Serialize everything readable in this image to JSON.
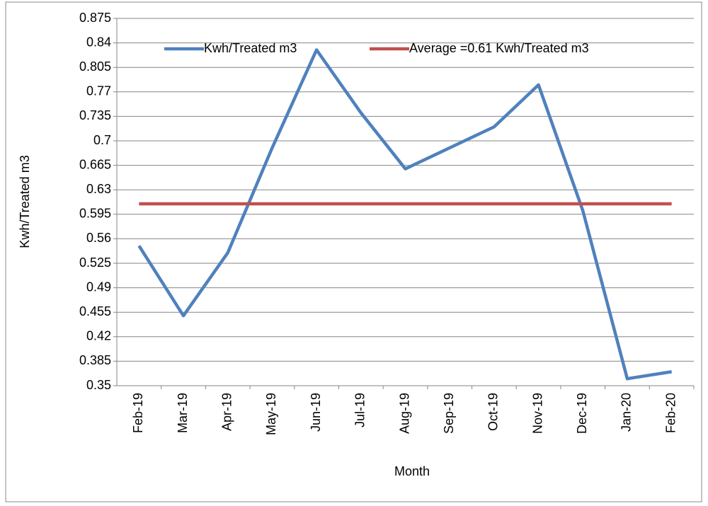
{
  "chart_data": {
    "type": "line",
    "x_label": "Month",
    "y_label": "Kwh/Treated m3",
    "categories": [
      "Feb-19",
      "Mar-19",
      "Apr-19",
      "May-19",
      "Jun-19",
      "Jul-19",
      "Aug-19",
      "Sep-19",
      "Oct-19",
      "Nov-19",
      "Dec-19",
      "Jan-20",
      "Feb-20"
    ],
    "series": [
      {
        "name": "Kwh/Treated m3",
        "color": "#4f81bd",
        "values": [
          0.55,
          0.45,
          0.54,
          0.69,
          0.83,
          0.74,
          0.66,
          0.69,
          0.72,
          0.78,
          0.6,
          0.36,
          0.37
        ]
      },
      {
        "name": "Average =0.61 Kwh/Treated m3",
        "color": "#c0504d",
        "values": [
          0.61,
          0.61,
          0.61,
          0.61,
          0.61,
          0.61,
          0.61,
          0.61,
          0.61,
          0.61,
          0.61,
          0.61,
          0.61
        ]
      }
    ],
    "ylim": [
      0.35,
      0.875
    ],
    "yticks": [
      0.35,
      0.385,
      0.42,
      0.455,
      0.49,
      0.525,
      0.56,
      0.595,
      0.63,
      0.665,
      0.7,
      0.735,
      0.77,
      0.805,
      0.84,
      0.875
    ],
    "grid": true,
    "legend": "top"
  }
}
